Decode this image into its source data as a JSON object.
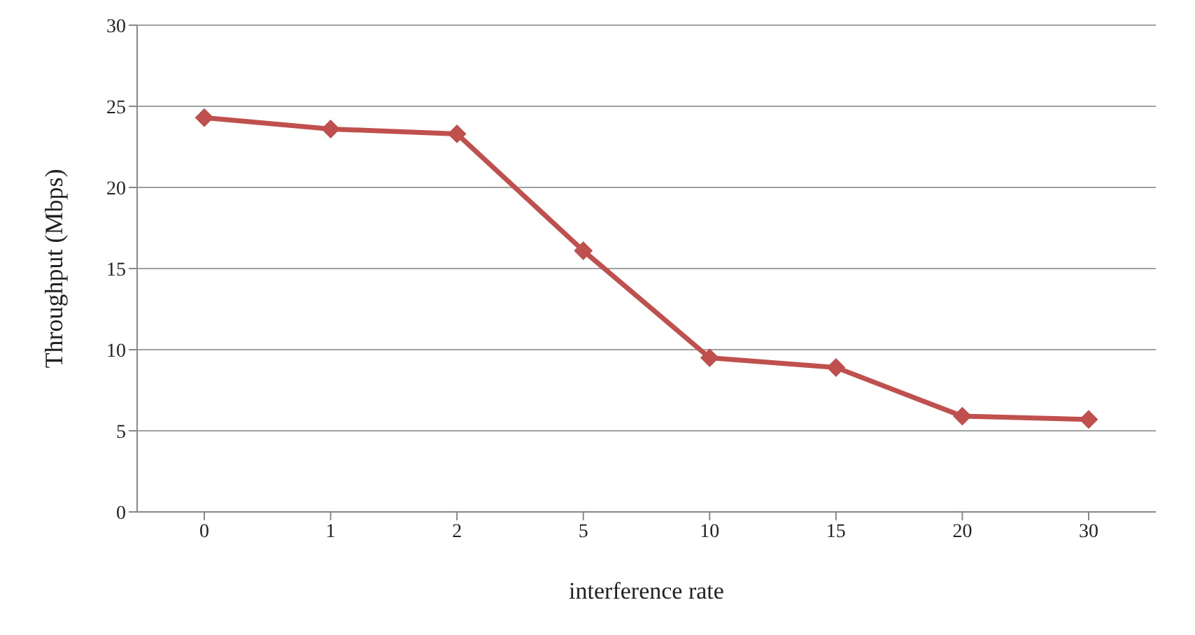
{
  "chart_data": {
    "type": "line",
    "xlabel": "interference rate",
    "ylabel": "Throughput (Mbps)",
    "categories": [
      "0",
      "1",
      "2",
      "5",
      "10",
      "15",
      "20",
      "30"
    ],
    "series": [
      {
        "color": "#c0504d",
        "values": [
          24.3,
          23.6,
          23.3,
          16.1,
          9.5,
          8.9,
          5.9,
          5.7
        ]
      }
    ],
    "ylim": [
      0,
      30
    ],
    "yticks": [
      0,
      5,
      10,
      15,
      20,
      25,
      30
    ],
    "grid": "y",
    "marker": "diamond",
    "legend": false
  }
}
